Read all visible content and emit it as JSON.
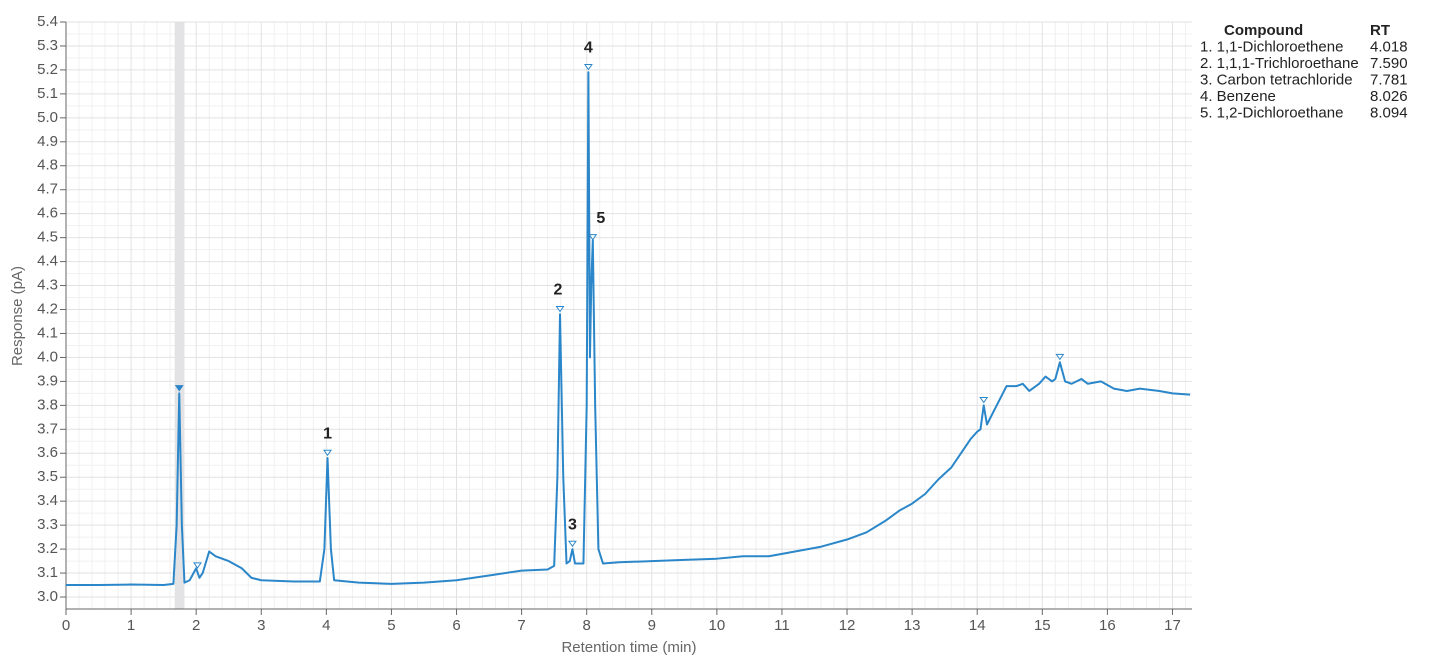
{
  "chart_data": {
    "type": "line",
    "x_label": "Retention time (min)",
    "y_label": "Response (pA)",
    "xlim": [
      0,
      17.3
    ],
    "ylim": [
      2.95,
      5.4
    ],
    "xticks": [
      0,
      1,
      2,
      3,
      4,
      5,
      6,
      7,
      8,
      9,
      10,
      11,
      12,
      13,
      14,
      15,
      16,
      17
    ],
    "yticks": [
      {
        "value": 3,
        "label": "3.0"
      },
      3.1,
      3.2,
      3.3,
      3.4,
      3.5,
      3.6,
      3.7,
      3.8,
      3.9,
      {
        "value": 4,
        "label": "4.0"
      },
      4.1,
      4.2,
      4.3,
      4.4,
      4.5,
      4.6,
      4.7,
      4.8,
      4.9,
      {
        "value": 5,
        "label": "5.0"
      },
      5.1,
      5.2,
      5.3,
      5.4
    ],
    "grid": true,
    "highlight_band": [
      1.67,
      1.82
    ],
    "series": [
      {
        "color": "#2b87c9",
        "x": [
          0,
          0.5,
          1,
          1.5,
          1.65,
          1.7,
          1.74,
          1.78,
          1.82,
          1.9,
          2.0,
          2.05,
          2.1,
          2.2,
          2.3,
          2.5,
          2.7,
          2.85,
          3.0,
          3.5,
          3.9,
          3.97,
          4.018,
          4.07,
          4.12,
          4.5,
          5.0,
          5.5,
          6.0,
          6.5,
          7.0,
          7.4,
          7.5,
          7.55,
          7.59,
          7.64,
          7.69,
          7.74,
          7.781,
          7.82,
          7.95,
          8.0,
          8.026,
          8.05,
          8.07,
          8.094,
          8.13,
          8.18,
          8.25,
          8.5,
          9,
          9.5,
          10,
          10.4,
          10.8,
          11.2,
          11.6,
          12.0,
          12.3,
          12.6,
          12.8,
          13.0,
          13.2,
          13.4,
          13.6,
          13.75,
          13.9,
          14.0,
          14.05,
          14.1,
          14.15,
          14.3,
          14.45,
          14.6,
          14.7,
          14.8,
          14.95,
          15.05,
          15.15,
          15.2,
          15.27,
          15.35,
          15.45,
          15.6,
          15.7,
          15.9,
          16.1,
          16.3,
          16.5,
          16.8,
          17.0,
          17.27
        ],
        "values": [
          3.05,
          3.05,
          3.052,
          3.05,
          3.055,
          3.3,
          3.85,
          3.3,
          3.06,
          3.07,
          3.12,
          3.08,
          3.1,
          3.19,
          3.17,
          3.15,
          3.12,
          3.08,
          3.07,
          3.065,
          3.065,
          3.2,
          3.58,
          3.2,
          3.07,
          3.06,
          3.055,
          3.06,
          3.07,
          3.09,
          3.11,
          3.115,
          3.13,
          3.5,
          4.18,
          3.5,
          3.14,
          3.15,
          3.2,
          3.14,
          3.14,
          3.8,
          5.19,
          4.0,
          4.3,
          4.49,
          3.8,
          3.2,
          3.14,
          3.145,
          3.15,
          3.155,
          3.16,
          3.17,
          3.17,
          3.19,
          3.21,
          3.24,
          3.27,
          3.32,
          3.36,
          3.39,
          3.43,
          3.49,
          3.54,
          3.6,
          3.66,
          3.69,
          3.7,
          3.8,
          3.72,
          3.8,
          3.88,
          3.88,
          3.89,
          3.86,
          3.89,
          3.92,
          3.9,
          3.91,
          3.98,
          3.9,
          3.89,
          3.91,
          3.89,
          3.9,
          3.87,
          3.86,
          3.87,
          3.86,
          3.85,
          3.845
        ]
      }
    ],
    "peaks": {
      "x": [
        1.74,
        2.02,
        4.018,
        7.59,
        7.781,
        8.026,
        8.094,
        14.1,
        15.27
      ],
      "y": [
        3.87,
        3.13,
        3.6,
        4.2,
        3.22,
        5.21,
        4.5,
        3.82,
        4.0
      ],
      "labels": [
        null,
        null,
        "1",
        "2",
        "3",
        "4",
        "5",
        null,
        null
      ]
    },
    "legend_table": {
      "headers": [
        "Compound",
        "RT"
      ],
      "rows": [
        [
          "1. 1,1-Dichloroethene",
          "4.018"
        ],
        [
          "2. 1,1,1-Trichloroethane",
          "7.590"
        ],
        [
          "3. Carbon tetrachloride",
          "7.781"
        ],
        [
          "4. Benzene",
          "8.026"
        ],
        [
          "5. 1,2-Dichloroethane",
          "8.094"
        ]
      ]
    }
  }
}
